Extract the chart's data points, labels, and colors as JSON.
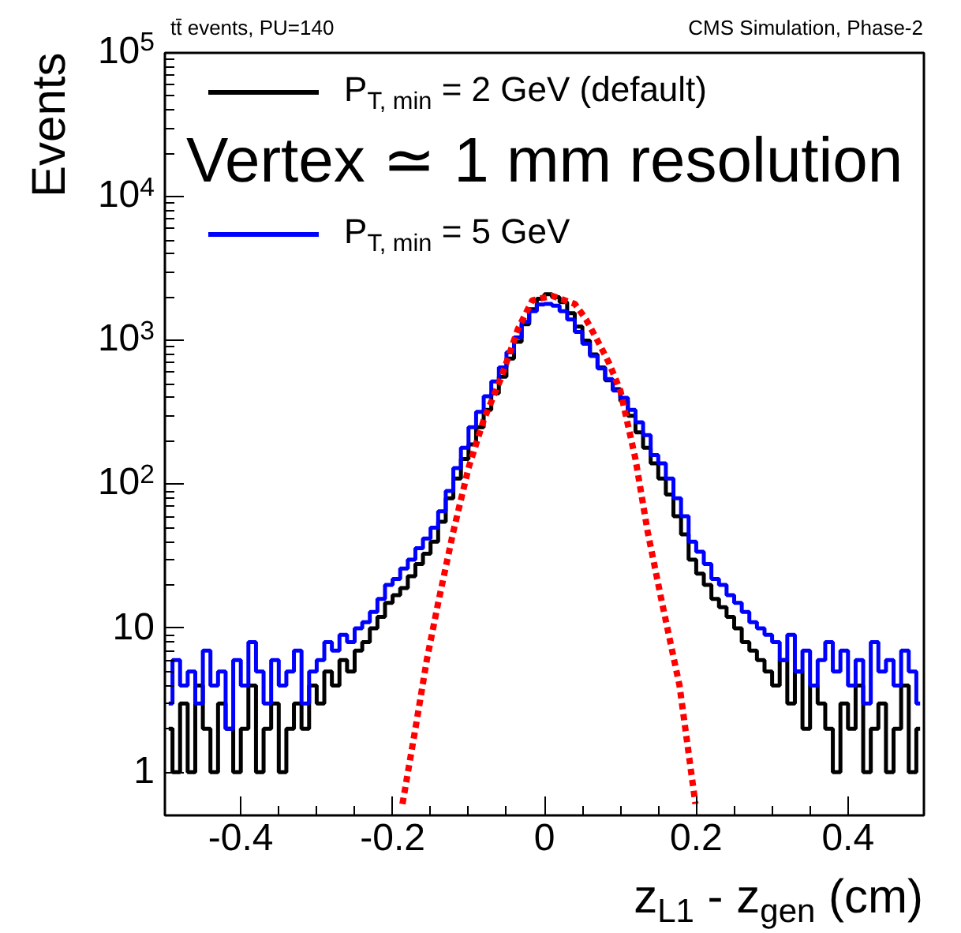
{
  "chart_data": {
    "type": "step",
    "title": "tt̄ events, PU=140",
    "subtitle": "CMS Simulation, Phase-2",
    "xlabel": "z$_{L1}$ - z$_{gen}$ (cm)",
    "ylabel": "Events",
    "annotations": [
      "Vertex ≃ 1 mm resolution"
    ],
    "x": [
      -0.495,
      -0.485,
      -0.475,
      -0.465,
      -0.455,
      -0.445,
      -0.435,
      -0.425,
      -0.415,
      -0.405,
      -0.395,
      -0.385,
      -0.375,
      -0.365,
      -0.355,
      -0.345,
      -0.335,
      -0.325,
      -0.315,
      -0.305,
      -0.295,
      -0.285,
      -0.275,
      -0.265,
      -0.255,
      -0.245,
      -0.235,
      -0.225,
      -0.215,
      -0.205,
      -0.195,
      -0.185,
      -0.175,
      -0.165,
      -0.155,
      -0.145,
      -0.135,
      -0.125,
      -0.115,
      -0.105,
      -0.095,
      -0.085,
      -0.075,
      -0.065,
      -0.055,
      -0.045,
      -0.035,
      -0.025,
      -0.015,
      -0.005,
      0.005,
      0.015,
      0.025,
      0.035,
      0.045,
      0.055,
      0.065,
      0.075,
      0.085,
      0.095,
      0.105,
      0.115,
      0.125,
      0.135,
      0.145,
      0.155,
      0.165,
      0.175,
      0.185,
      0.195,
      0.205,
      0.215,
      0.225,
      0.235,
      0.245,
      0.255,
      0.265,
      0.275,
      0.285,
      0.295,
      0.305,
      0.315,
      0.325,
      0.335,
      0.345,
      0.355,
      0.365,
      0.375,
      0.385,
      0.395,
      0.405,
      0.415,
      0.425,
      0.435,
      0.445,
      0.455,
      0.465,
      0.475,
      0.485,
      0.495
    ],
    "series": [
      {
        "name": "P$_{T, min}$ = 2 GeV (default)",
        "color": "#000000",
        "values": [
          2,
          1,
          3,
          1,
          4,
          2,
          1,
          3,
          2,
          1,
          2,
          4,
          1,
          2,
          3,
          1,
          2,
          3,
          2,
          4,
          3,
          5,
          4,
          6,
          5,
          7,
          8,
          10,
          12,
          15,
          17,
          19,
          23,
          28,
          33,
          40,
          55,
          80,
          110,
          150,
          190,
          250,
          330,
          430,
          560,
          750,
          980,
          1300,
          1650,
          1950,
          2100,
          2000,
          1850,
          1550,
          1250,
          1000,
          800,
          650,
          530,
          460,
          380,
          300,
          230,
          180,
          140,
          110,
          85,
          60,
          45,
          30,
          24,
          20,
          16,
          14,
          12,
          10,
          8,
          7,
          6,
          5,
          4,
          6,
          3,
          5,
          2,
          4,
          3,
          2,
          1,
          3,
          2,
          4,
          1,
          2,
          3,
          1,
          2,
          4,
          1,
          2
        ]
      },
      {
        "name": "P$_{T, min}$ = 5 GeV",
        "color": "#0000ff",
        "values": [
          3,
          6,
          4,
          5,
          3,
          7,
          4,
          5,
          2,
          6,
          4,
          8,
          5,
          3,
          6,
          4,
          5,
          7,
          3,
          5,
          6,
          8,
          7,
          9,
          8,
          10,
          11,
          13,
          16,
          20,
          22,
          26,
          30,
          36,
          42,
          50,
          65,
          90,
          130,
          180,
          250,
          320,
          410,
          520,
          650,
          830,
          1050,
          1350,
          1600,
          1780,
          1800,
          1750,
          1600,
          1400,
          1150,
          950,
          780,
          640,
          540,
          450,
          400,
          330,
          270,
          220,
          160,
          140,
          110,
          80,
          60,
          40,
          34,
          28,
          22,
          20,
          17,
          15,
          13,
          11,
          10,
          9,
          8,
          6,
          9,
          5,
          7,
          4,
          6,
          8,
          5,
          7,
          4,
          6,
          3,
          8,
          5,
          6,
          4,
          7,
          5,
          3
        ]
      },
      {
        "type": "line",
        "line_style": "dotted",
        "color": "#ff0000",
        "x": [
          -0.187,
          -0.17,
          -0.155,
          -0.14,
          -0.12,
          -0.1,
          -0.08,
          -0.057,
          -0.035,
          -0.016,
          0.01,
          0.04,
          0.055,
          0.07,
          0.085,
          0.1,
          0.12,
          0.136,
          0.155,
          0.178,
          0.199
        ],
        "values": [
          0.6,
          2,
          6,
          15,
          47,
          130,
          280,
          550,
          1200,
          1900,
          2050,
          1800,
          1400,
          1000,
          700,
          450,
          150,
          47,
          15,
          4,
          0.6
        ]
      }
    ],
    "log": "y",
    "xlim": [
      -0.5,
      0.5
    ],
    "ylim": [
      0.5,
      100000
    ],
    "xticks": [
      -0.4,
      -0.2,
      0,
      0.2,
      0.4
    ],
    "yticks": [
      1,
      10,
      {
        "value": 100,
        "label": "10$^{2}$"
      },
      {
        "value": 1000,
        "label": "10$^{3}$"
      },
      {
        "value": 10000,
        "label": "10$^{4}$"
      },
      {
        "value": 100000,
        "label": "10$^{5}$"
      }
    ],
    "legend": "top left",
    "grid": false
  }
}
